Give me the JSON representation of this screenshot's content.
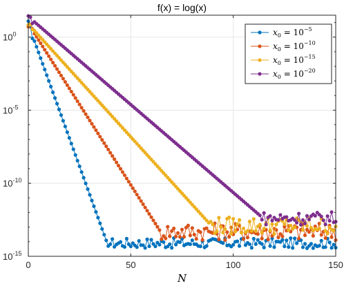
{
  "chart_data": {
    "type": "line",
    "title": "f(x) = log(x)",
    "xlabel": "N",
    "ylabel": "",
    "xlim": [
      0,
      150
    ],
    "ylim_log10": [
      -15,
      1.5
    ],
    "yscale": "log",
    "grid": true,
    "legend_position": "top-right",
    "x_ticks": [
      "0",
      "50",
      "100",
      "150"
    ],
    "y_ticks": [
      {
        "base": "10",
        "exp": "0",
        "value_log10": 0
      },
      {
        "base": "10",
        "exp": "-5",
        "value_log10": -5
      },
      {
        "base": "10",
        "exp": "-10",
        "value_log10": -10
      },
      {
        "base": "10",
        "exp": "-15",
        "value_log10": -15
      }
    ],
    "series": [
      {
        "label_base": "x",
        "label_sub": "0",
        "label_eq": " = 10",
        "label_exp": "−5",
        "color": "#0072BD",
        "description": "log10 error vs N",
        "decay_end_N": 39,
        "decay_start_log10": 0.9,
        "decay_end_log10": -14.3,
        "floor_log10": -14.1,
        "floor_noise": 0.35
      },
      {
        "label_base": "x",
        "label_sub": "0",
        "label_eq": " = 10",
        "label_exp": "−10",
        "color": "#D95319",
        "description": "log10 error vs N",
        "decay_end_N": 64,
        "decay_start_log10": 0.9,
        "decay_end_log10": -13.2,
        "floor_log10": -13.3,
        "floor_noise": 0.6
      },
      {
        "label_base": "x",
        "label_sub": "0",
        "label_eq": " = 10",
        "label_exp": "−15",
        "color": "#EDB120",
        "description": "log10 error vs N",
        "decay_end_N": 88,
        "decay_start_log10": 0.9,
        "decay_end_log10": -12.7,
        "floor_log10": -12.9,
        "floor_noise": 0.6
      },
      {
        "label_base": "x",
        "label_sub": "0",
        "label_eq": " = 10",
        "label_exp": "−20",
        "color": "#7E2F8E",
        "description": "log10 error vs N",
        "decay_end_N": 113,
        "decay_start_log10": 1.4,
        "decay_end_log10": -12.2,
        "floor_log10": -12.4,
        "floor_noise": 0.45
      }
    ]
  }
}
